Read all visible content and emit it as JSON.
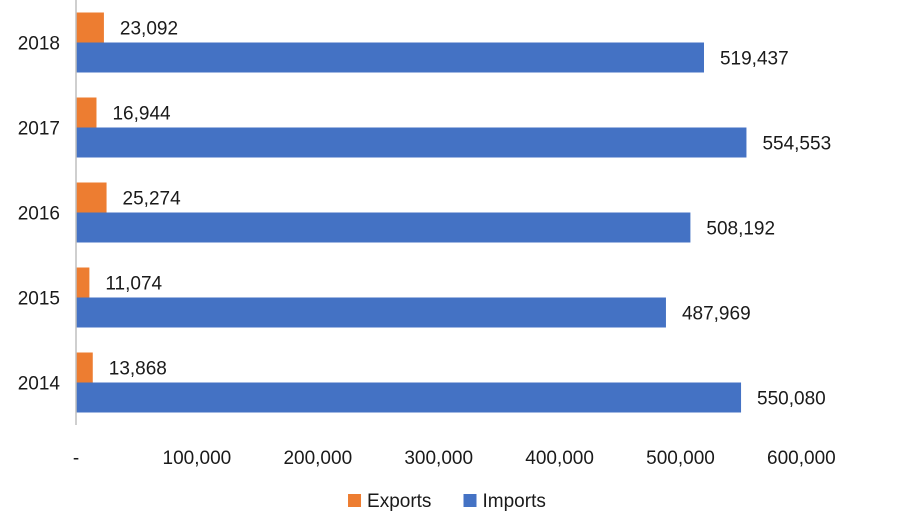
{
  "chart_data": {
    "type": "bar",
    "orientation": "horizontal",
    "categories": [
      "2018",
      "2017",
      "2016",
      "2015",
      "2014"
    ],
    "series": [
      {
        "name": "Exports",
        "color": "#ed7d31",
        "values": [
          23092,
          16944,
          25274,
          11074,
          13868
        ],
        "labels": [
          "23,092",
          "16,944",
          "25,274",
          "11,074",
          "13,868"
        ]
      },
      {
        "name": "Imports",
        "color": "#4472c4",
        "values": [
          519437,
          554553,
          508192,
          487969,
          550080
        ],
        "labels": [
          "519,437",
          "554,553",
          "508,192",
          "487,969",
          "550,080"
        ]
      }
    ],
    "xlim": [
      0,
      600000
    ],
    "x_ticks": [
      0,
      100000,
      200000,
      300000,
      400000,
      500000,
      600000
    ],
    "x_tick_labels": [
      "-",
      "100,000",
      "200,000",
      "300,000",
      "400,000",
      "500,000",
      "600,000"
    ],
    "title": "",
    "xlabel": "",
    "ylabel": "",
    "grid": false,
    "legend_position": "bottom"
  }
}
